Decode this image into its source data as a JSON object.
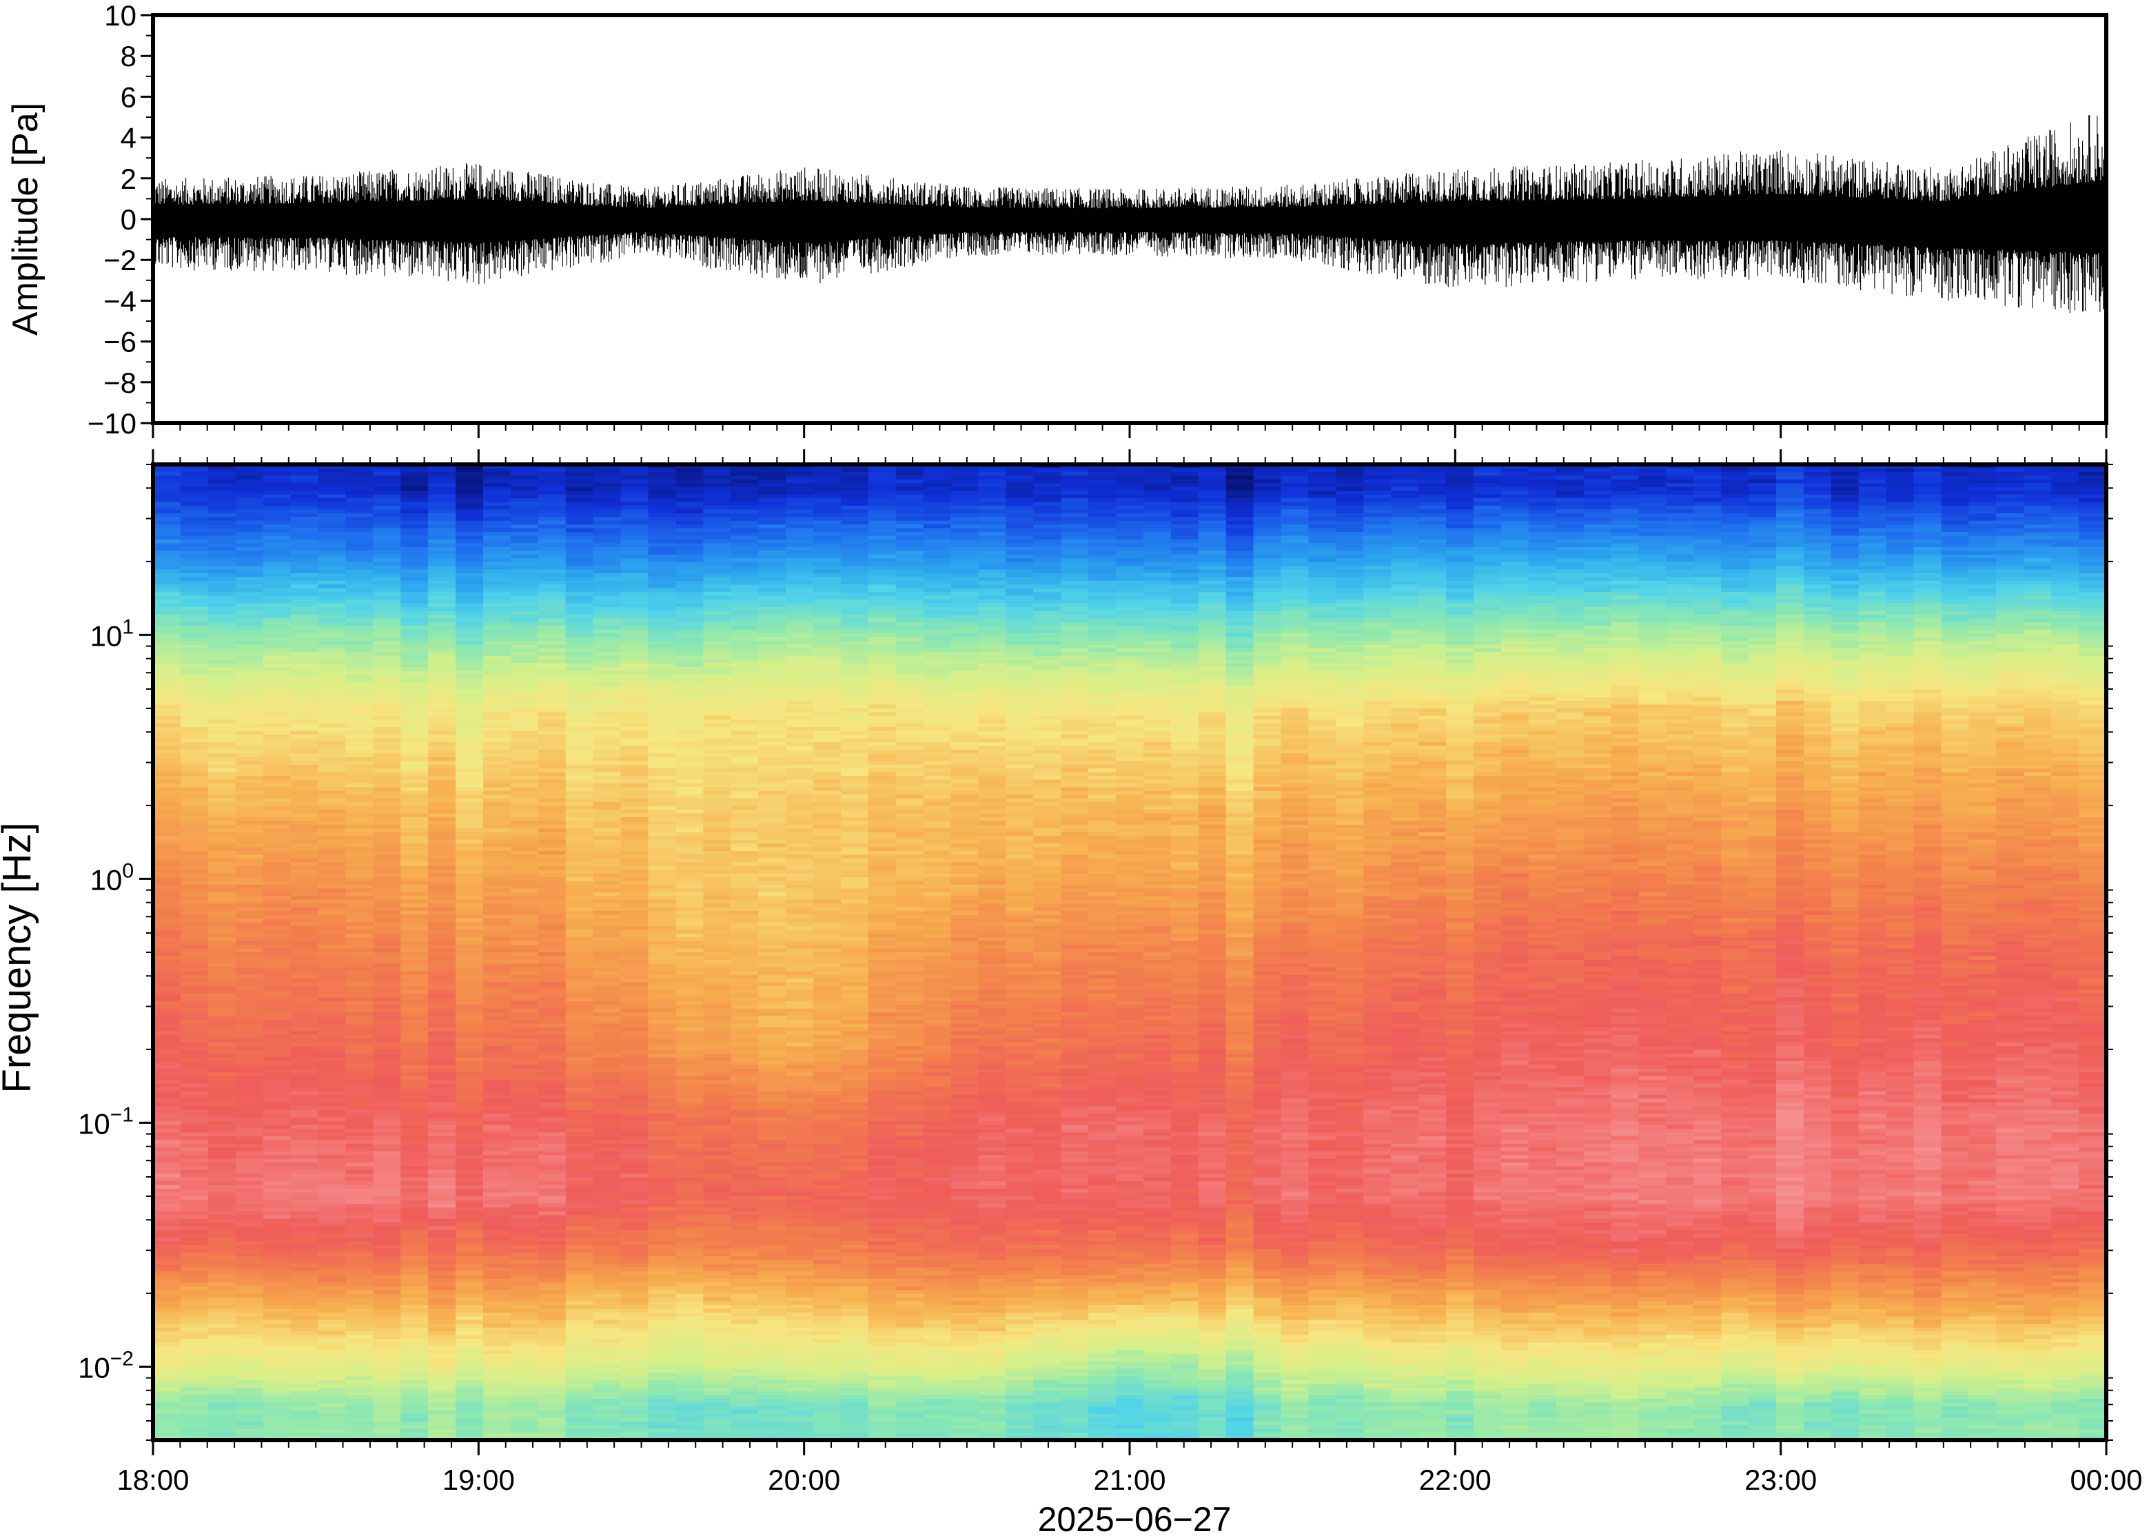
{
  "chart_data": [
    {
      "type": "line",
      "panel": "waveform",
      "ylabel": "Amplitude [Pa]",
      "ylim": [
        -10,
        10
      ],
      "yticks": [
        10,
        8,
        6,
        4,
        2,
        0,
        -2,
        -4,
        -6,
        -8,
        -10
      ],
      "ytick_labels": [
        "10",
        "8",
        "6",
        "4",
        "2",
        "0",
        "−2",
        "−4",
        "−6",
        "−8",
        "−10"
      ],
      "xlim": [
        "2025-06-27T18:00",
        "2025-06-28T00:00"
      ],
      "line_color": "#000000",
      "series": [
        {
          "x": [
            "2025-06-27T18:00",
            "2025-06-27T18:30",
            "2025-06-27T19:00",
            "2025-06-27T19:30",
            "2025-06-27T20:00",
            "2025-06-27T20:30",
            "2025-06-27T21:00",
            "2025-06-27T21:30",
            "2025-06-27T22:00",
            "2025-06-27T22:30",
            "2025-06-27T23:00",
            "2025-06-27T23:30",
            "2025-06-28T00:00"
          ],
          "envelope_max": [
            2.0,
            2.2,
            2.8,
            1.5,
            2.6,
            1.6,
            1.5,
            1.7,
            2.5,
            2.8,
            3.5,
            2.5,
            5.5
          ],
          "envelope_min": [
            -2.5,
            -2.6,
            -3.3,
            -1.8,
            -3.3,
            -1.8,
            -1.8,
            -2.0,
            -3.5,
            -3.0,
            -3.0,
            -4.0,
            -4.8
          ]
        }
      ]
    },
    {
      "type": "heatmap",
      "panel": "spectrogram",
      "ylabel": "Frequency [Hz]",
      "xlabel": "2025−06−27",
      "yscale": "log",
      "ylim": [
        0.005,
        50
      ],
      "yticks": [
        0.01,
        0.1,
        1,
        10
      ],
      "ytick_labels": [
        {
          "base": "10",
          "exp": "−2"
        },
        {
          "base": "10",
          "exp": "−1"
        },
        {
          "base": "10",
          "exp": "0"
        },
        {
          "base": "10",
          "exp": "1"
        }
      ],
      "xticks": [
        "18:00",
        "19:00",
        "20:00",
        "21:00",
        "22:00",
        "23:00",
        "00:00"
      ],
      "colormap": [
        "#06116e",
        "#1030d8",
        "#1f70ee",
        "#2ea8ee",
        "#52d4e8",
        "#8ee8b0",
        "#d4f08a",
        "#f6e680",
        "#f7b050",
        "#f3834c",
        "#ef5d5a",
        "#f69090"
      ],
      "time_columns": [
        "18:00",
        "18:30",
        "19:00",
        "19:30",
        "20:00",
        "20:30",
        "21:00",
        "21:30",
        "22:00",
        "22:30",
        "23:00",
        "23:30",
        "00:00"
      ],
      "frequency_rows_hz": [
        40,
        20,
        10,
        5,
        2,
        1,
        0.5,
        0.2,
        0.1,
        0.05,
        0.03,
        0.02,
        0.01,
        0.007
      ],
      "values": [
        [
          0.08,
          0.08,
          0.06,
          0.08,
          0.06,
          0.08,
          0.06,
          0.06,
          0.08,
          0.08,
          0.08,
          0.08,
          0.08
        ],
        [
          0.22,
          0.24,
          0.24,
          0.24,
          0.26,
          0.24,
          0.22,
          0.26,
          0.28,
          0.28,
          0.26,
          0.26,
          0.26
        ],
        [
          0.45,
          0.46,
          0.44,
          0.46,
          0.48,
          0.44,
          0.44,
          0.46,
          0.48,
          0.5,
          0.48,
          0.5,
          0.5
        ],
        [
          0.62,
          0.62,
          0.62,
          0.64,
          0.64,
          0.62,
          0.62,
          0.64,
          0.66,
          0.68,
          0.66,
          0.68,
          0.68
        ],
        [
          0.72,
          0.72,
          0.7,
          0.7,
          0.68,
          0.7,
          0.7,
          0.72,
          0.74,
          0.76,
          0.74,
          0.76,
          0.76
        ],
        [
          0.78,
          0.78,
          0.76,
          0.72,
          0.68,
          0.72,
          0.74,
          0.76,
          0.8,
          0.82,
          0.8,
          0.82,
          0.82
        ],
        [
          0.82,
          0.82,
          0.8,
          0.76,
          0.7,
          0.78,
          0.8,
          0.82,
          0.86,
          0.88,
          0.86,
          0.88,
          0.88
        ],
        [
          0.88,
          0.88,
          0.86,
          0.82,
          0.72,
          0.84,
          0.86,
          0.88,
          0.9,
          0.92,
          0.9,
          0.92,
          0.92
        ],
        [
          0.92,
          0.92,
          0.92,
          0.9,
          0.84,
          0.9,
          0.92,
          0.92,
          0.94,
          0.96,
          0.94,
          0.96,
          0.96
        ],
        [
          0.94,
          0.96,
          0.96,
          0.92,
          0.88,
          0.92,
          0.92,
          0.92,
          0.94,
          0.96,
          0.96,
          0.96,
          0.96
        ],
        [
          0.86,
          0.88,
          0.86,
          0.84,
          0.82,
          0.86,
          0.84,
          0.86,
          0.88,
          0.9,
          0.88,
          0.88,
          0.88
        ],
        [
          0.74,
          0.76,
          0.76,
          0.72,
          0.72,
          0.76,
          0.72,
          0.74,
          0.76,
          0.78,
          0.76,
          0.78,
          0.78
        ],
        [
          0.58,
          0.58,
          0.6,
          0.56,
          0.56,
          0.58,
          0.46,
          0.54,
          0.58,
          0.6,
          0.56,
          0.6,
          0.58
        ],
        [
          0.44,
          0.46,
          0.48,
          0.44,
          0.42,
          0.44,
          0.36,
          0.44,
          0.46,
          0.48,
          0.42,
          0.46,
          0.46
        ]
      ]
    }
  ]
}
